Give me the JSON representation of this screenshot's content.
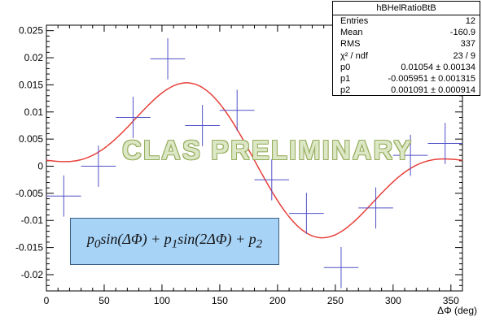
{
  "chart_data": {
    "type": "scatter",
    "title": "",
    "xlabel": "ΔΦ (deg)",
    "ylabel": "",
    "xlim": [
      0,
      360
    ],
    "ylim": [
      -0.023,
      0.026
    ],
    "xticks": [
      0,
      50,
      100,
      150,
      200,
      250,
      300,
      350
    ],
    "yticks": [
      -0.02,
      -0.015,
      -0.01,
      -0.005,
      0,
      0.005,
      0.01,
      0.015,
      0.02,
      0.025
    ],
    "ytick_labels": [
      "-0.02",
      "-0.015",
      "-0.01",
      "-0.005",
      "0",
      "0.005",
      "0.01",
      "0.015",
      "0.02",
      "0.025"
    ],
    "grid": false,
    "points": [
      {
        "x": 15,
        "y": -0.0055,
        "xerr": 15,
        "yerr": 0.0038
      },
      {
        "x": 45,
        "y": 0.0,
        "xerr": 15,
        "yerr": 0.0038
      },
      {
        "x": 75,
        "y": 0.009,
        "xerr": 15,
        "yerr": 0.0038
      },
      {
        "x": 105,
        "y": 0.0198,
        "xerr": 15,
        "yerr": 0.0038
      },
      {
        "x": 135,
        "y": 0.0075,
        "xerr": 15,
        "yerr": 0.0038
      },
      {
        "x": 165,
        "y": 0.0103,
        "xerr": 15,
        "yerr": 0.0038
      },
      {
        "x": 195,
        "y": -0.0025,
        "xerr": 15,
        "yerr": 0.0038
      },
      {
        "x": 225,
        "y": -0.0087,
        "xerr": 15,
        "yerr": 0.0038
      },
      {
        "x": 255,
        "y": -0.0187,
        "xerr": 15,
        "yerr": 0.0038
      },
      {
        "x": 285,
        "y": -0.0077,
        "xerr": 15,
        "yerr": 0.0038
      },
      {
        "x": 315,
        "y": 0.002,
        "xerr": 15,
        "yerr": 0.0038
      },
      {
        "x": 345,
        "y": 0.0042,
        "xerr": 15,
        "yerr": 0.0038
      }
    ],
    "fit": {
      "p0": 0.01054,
      "p1": -0.005951,
      "p2": 0.001091
    },
    "colors": {
      "points": "#5050c8",
      "fit": "#e8403a"
    },
    "stats": {
      "name": "hBHelRatioBtB",
      "rows": [
        {
          "label": "Entries",
          "value": "12"
        },
        {
          "label": "Mean",
          "value": "-160.9"
        },
        {
          "label": "RMS",
          "value": "337"
        },
        {
          "label": "χ² / ndf",
          "value": "23 / 9"
        },
        {
          "label": "p0",
          "value": "0.01054 ± 0.00134"
        },
        {
          "label": "p1",
          "value": "-0.005951 ± 0.001315"
        },
        {
          "label": "p2",
          "value": "0.001091 ± 0.000914"
        }
      ]
    },
    "formula": "p0 sin(ΔΦ) + p1 sin(2ΔΦ) + p2",
    "watermark": "CLAS PRELIMINARY"
  }
}
